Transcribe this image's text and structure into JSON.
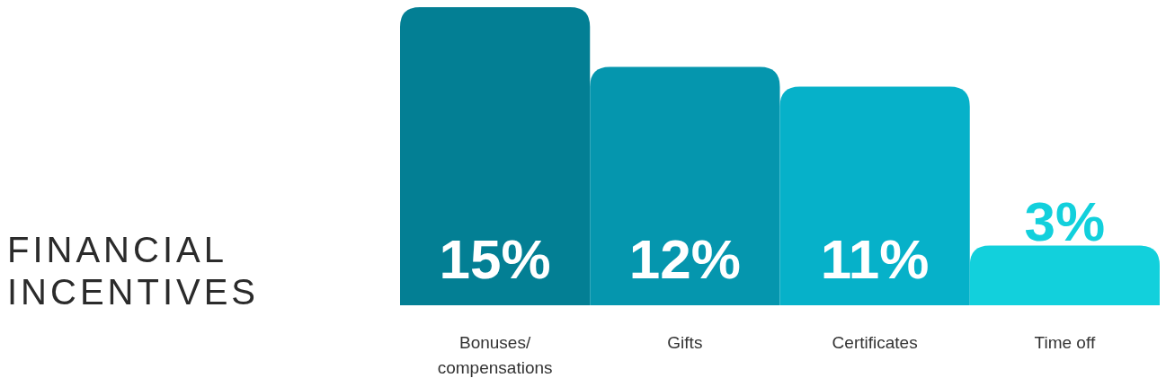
{
  "chart_data": {
    "type": "bar",
    "title": "FINANCIAL INCENTIVES",
    "categories": [
      "Bonuses/ compensations",
      "Gifts",
      "Certificates",
      "Time off"
    ],
    "values": [
      15,
      12,
      11,
      3
    ],
    "colors": [
      "#037f94",
      "#0596ae",
      "#06b1c9",
      "#12d0dc"
    ],
    "value_labels": [
      "15%",
      "12%",
      "11%",
      "3%"
    ]
  }
}
